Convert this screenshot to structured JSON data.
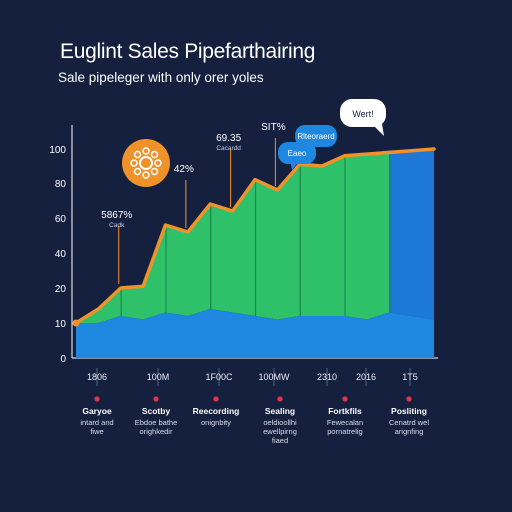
{
  "chart_data": {
    "type": "area",
    "title": "Euglint Sales Pipefarthairing",
    "subtitle": "Sale pipeleger with only orer yoles",
    "yticks": [
      "0",
      "10",
      "20",
      "40",
      "60",
      "80",
      "100"
    ],
    "ylim": [
      0,
      100
    ],
    "x": [
      0,
      0.5,
      1,
      1.5,
      2,
      2.5,
      3,
      3.5,
      4,
      4.5,
      5,
      5.5,
      6,
      6.5,
      7,
      7.5,
      8
    ],
    "series": [
      {
        "values": [
          10,
          14,
          20,
          21,
          56,
          52,
          68,
          64,
          82,
          76,
          91,
          90,
          96,
          97,
          98,
          99,
          100
        ]
      },
      {
        "values": [
          10,
          10,
          12,
          11,
          13,
          12,
          14,
          13,
          12,
          11,
          12,
          12,
          12,
          11,
          13,
          12,
          11
        ]
      }
    ],
    "colors": {
      "line": "#f0922a",
      "upper_area": "#2fc169",
      "lower_area": "#1e88e0",
      "last_band": "#1e78d8",
      "marker": "#e0344a"
    },
    "xticks": [
      "1806",
      "100M",
      "1F00C",
      "100MW",
      "2310",
      "2016",
      "1T5"
    ],
    "stages": [
      {
        "title": "Garyoe",
        "desc": [
          "intard and",
          "fiwe"
        ]
      },
      {
        "title": "Scotby",
        "desc": [
          "Ebdoe bathe",
          "orighkedir"
        ]
      },
      {
        "title": "Reecording",
        "desc": [
          "onignbity"
        ]
      },
      {
        "title": "Sealing",
        "desc": [
          "oeldioollhi",
          "ewellpirng",
          "fiaed"
        ]
      },
      {
        "title": "Fortkfils",
        "desc": [
          "Fewecalan",
          "pornatrelig"
        ]
      },
      {
        "title": "Posliting",
        "desc": [
          "Cenatrd wel",
          "arignfing"
        ]
      }
    ],
    "annotations": [
      {
        "label": "5867%",
        "sub": "Cadk",
        "x": 1,
        "y": 20
      },
      {
        "label": "42%",
        "sub": "",
        "x": 2.5,
        "y": 52
      },
      {
        "label": "69.35",
        "sub": "Cacardd",
        "x": 3.5,
        "y": 64
      },
      {
        "label": "SIT%",
        "sub": "",
        "x": 4.5,
        "y": 76
      }
    ],
    "bubbles": [
      {
        "text": "Wert!",
        "style": "light"
      },
      {
        "text": "Rlteoraerd",
        "style": "blue"
      },
      {
        "text": "Eaeo",
        "style": "blue"
      }
    ],
    "grid": false,
    "legend": "none"
  }
}
